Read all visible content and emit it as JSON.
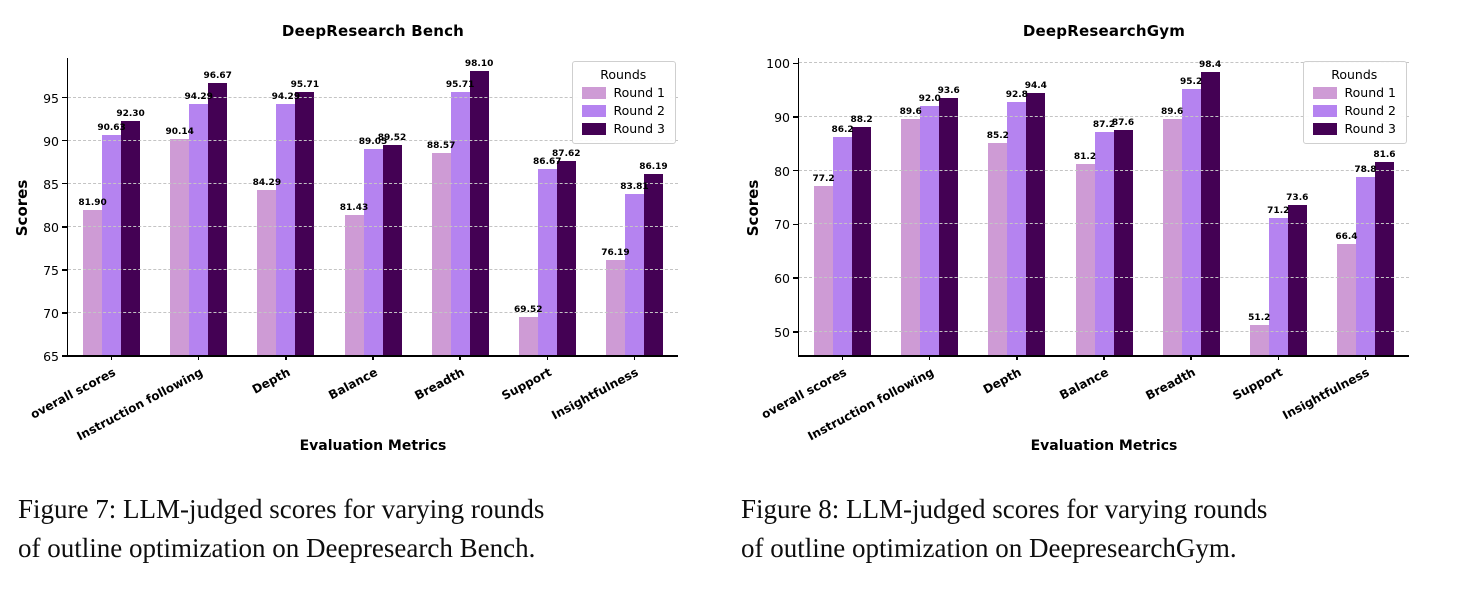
{
  "figures": [
    {
      "caption_lines": [
        "Figure 7: LLM-judged scores for varying rounds",
        "of outline optimization on Deepresearch Bench."
      ]
    },
    {
      "caption_lines": [
        "Figure 8: LLM-judged scores for varying rounds",
        "of outline optimization on DeepresearchGym."
      ]
    }
  ],
  "chart_data": [
    {
      "type": "bar",
      "title": "DeepResearch Bench",
      "xlabel": "Evaluation Metrics",
      "ylabel": "Scores",
      "categories": [
        "overall scores",
        "Instruction following",
        "Depth",
        "Balance",
        "Breadth",
        "Support",
        "Insightfulness"
      ],
      "series": [
        {
          "name": "Round 1",
          "color": "#CE9BD5",
          "values": [
            81.9,
            90.14,
            84.29,
            81.43,
            88.57,
            69.52,
            76.19
          ]
        },
        {
          "name": "Round 2",
          "color": "#B583F0",
          "values": [
            90.63,
            94.29,
            94.29,
            89.05,
            95.71,
            86.67,
            83.81
          ]
        },
        {
          "name": "Round 3",
          "color": "#440154",
          "values": [
            92.3,
            96.67,
            95.71,
            89.52,
            98.1,
            87.62,
            86.19
          ]
        }
      ],
      "legend_title": "Rounds",
      "legend_position": "upper right",
      "ylim": [
        65,
        99.6
      ],
      "yticks": [
        65,
        70,
        75,
        80,
        85,
        90,
        95
      ],
      "grid": "dashed-horizontal",
      "value_label_decimals": 2
    },
    {
      "type": "bar",
      "title": "DeepResearchGym",
      "xlabel": "Evaluation Metrics",
      "ylabel": "Scores",
      "categories": [
        "overall scores",
        "Instruction following",
        "Depth",
        "Balance",
        "Breadth",
        "Support",
        "Insightfulness"
      ],
      "series": [
        {
          "name": "Round 1",
          "color": "#CE9BD5",
          "values": [
            77.2,
            89.6,
            85.2,
            81.2,
            89.6,
            51.2,
            66.4
          ]
        },
        {
          "name": "Round 2",
          "color": "#B583F0",
          "values": [
            86.2,
            92.0,
            92.8,
            87.2,
            95.2,
            71.2,
            78.8
          ]
        },
        {
          "name": "Round 3",
          "color": "#440154",
          "values": [
            88.2,
            93.6,
            94.4,
            87.6,
            98.4,
            73.6,
            81.6
          ]
        }
      ],
      "legend_title": "Rounds",
      "legend_position": "upper right",
      "ylim": [
        45.5,
        101
      ],
      "yticks": [
        50,
        60,
        70,
        80,
        90,
        100
      ],
      "grid": "dashed-horizontal",
      "value_label_decimals": 1
    }
  ]
}
